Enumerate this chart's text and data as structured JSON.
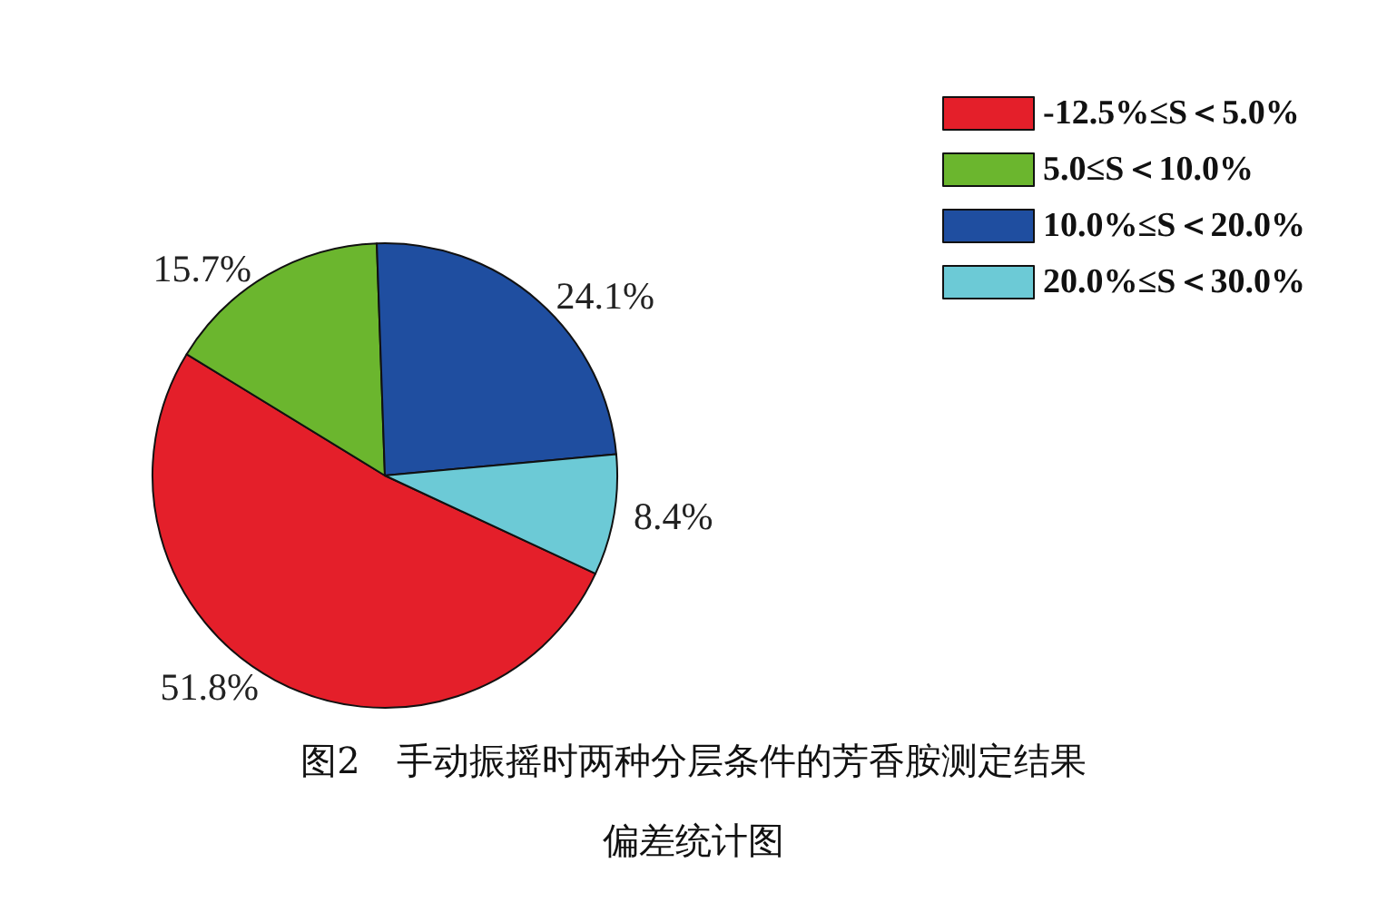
{
  "chart_data": {
    "type": "pie",
    "title": "图2　手动振摇时两种分层条件的芳香胺测定结果偏差统计图",
    "categories": [
      "-12.5%≤S＜5.0%",
      "5.0≤S＜10.0%",
      "10.0%≤S＜20.0%",
      "20.0%≤S＜30.0%"
    ],
    "values": [
      51.8,
      15.7,
      24.1,
      8.4
    ],
    "value_labels": [
      "51.8%",
      "15.7%",
      "24.1%",
      "8.4%"
    ],
    "colors": [
      "#e41f2a",
      "#6bb62e",
      "#1f4ea0",
      "#6ccad6"
    ],
    "legend": "top right"
  }
}
